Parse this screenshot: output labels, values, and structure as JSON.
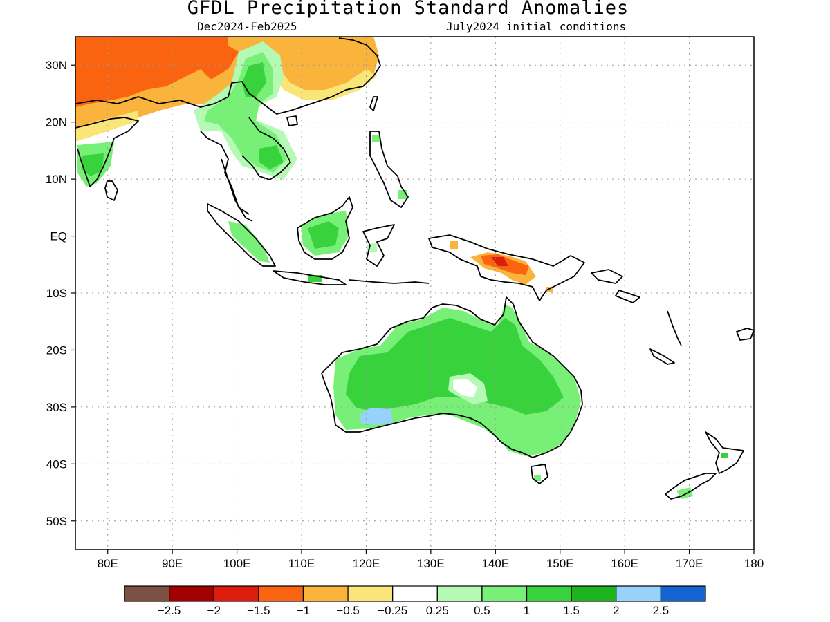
{
  "header": {
    "title": "GFDL Precipitation Standard Anomalies",
    "period": "Dec2024-Feb2025",
    "init": "July2024 initial conditions"
  },
  "map": {
    "lon_range": [
      75,
      180
    ],
    "lat_range": [
      -55,
      35
    ],
    "lon_ticks": [
      {
        "v": 80,
        "label": "80E"
      },
      {
        "v": 90,
        "label": "90E"
      },
      {
        "v": 100,
        "label": "100E"
      },
      {
        "v": 110,
        "label": "110E"
      },
      {
        "v": 120,
        "label": "120E"
      },
      {
        "v": 130,
        "label": "130E"
      },
      {
        "v": 140,
        "label": "140E"
      },
      {
        "v": 150,
        "label": "150E"
      },
      {
        "v": 160,
        "label": "160E"
      },
      {
        "v": 170,
        "label": "170E"
      },
      {
        "v": 180,
        "label": "180"
      }
    ],
    "lat_ticks": [
      {
        "v": 30,
        "label": "30N"
      },
      {
        "v": 20,
        "label": "20N"
      },
      {
        "v": 10,
        "label": "10N"
      },
      {
        "v": 0,
        "label": "EQ"
      },
      {
        "v": -10,
        "label": "10S"
      },
      {
        "v": -20,
        "label": "20S"
      },
      {
        "v": -30,
        "label": "30S"
      },
      {
        "v": -40,
        "label": "40S"
      },
      {
        "v": -50,
        "label": "50S"
      }
    ],
    "grid": true
  },
  "colorbar": {
    "colors": [
      "#7a5143",
      "#a00000",
      "#dc1c0c",
      "#fa6410",
      "#fab43c",
      "#fae678",
      "#ffffff",
      "#b4fab4",
      "#78f078",
      "#37d23c",
      "#1eb41e",
      "#96d2fa",
      "#1464d2"
    ],
    "labels": [
      "-2.5",
      "-2",
      "-1.5",
      "-1",
      "-0.5",
      "-0.25",
      "0.25",
      "0.5",
      "1",
      "1.5",
      "2",
      "2.5"
    ]
  },
  "anomaly_regions": [
    {
      "name": "India / Himalaya",
      "level": "-1"
    },
    {
      "name": "Southern China",
      "level": "-0.5"
    },
    {
      "name": "Indochina",
      "level": "1"
    },
    {
      "name": "Borneo",
      "level": "1"
    },
    {
      "name": "Sumatra",
      "level": "1"
    },
    {
      "name": "New Guinea",
      "level": "-1"
    },
    {
      "name": "Australia",
      "level": "1"
    },
    {
      "name": "Southwest Australia",
      "level": "2"
    },
    {
      "name": "New Zealand",
      "level": "1"
    }
  ]
}
